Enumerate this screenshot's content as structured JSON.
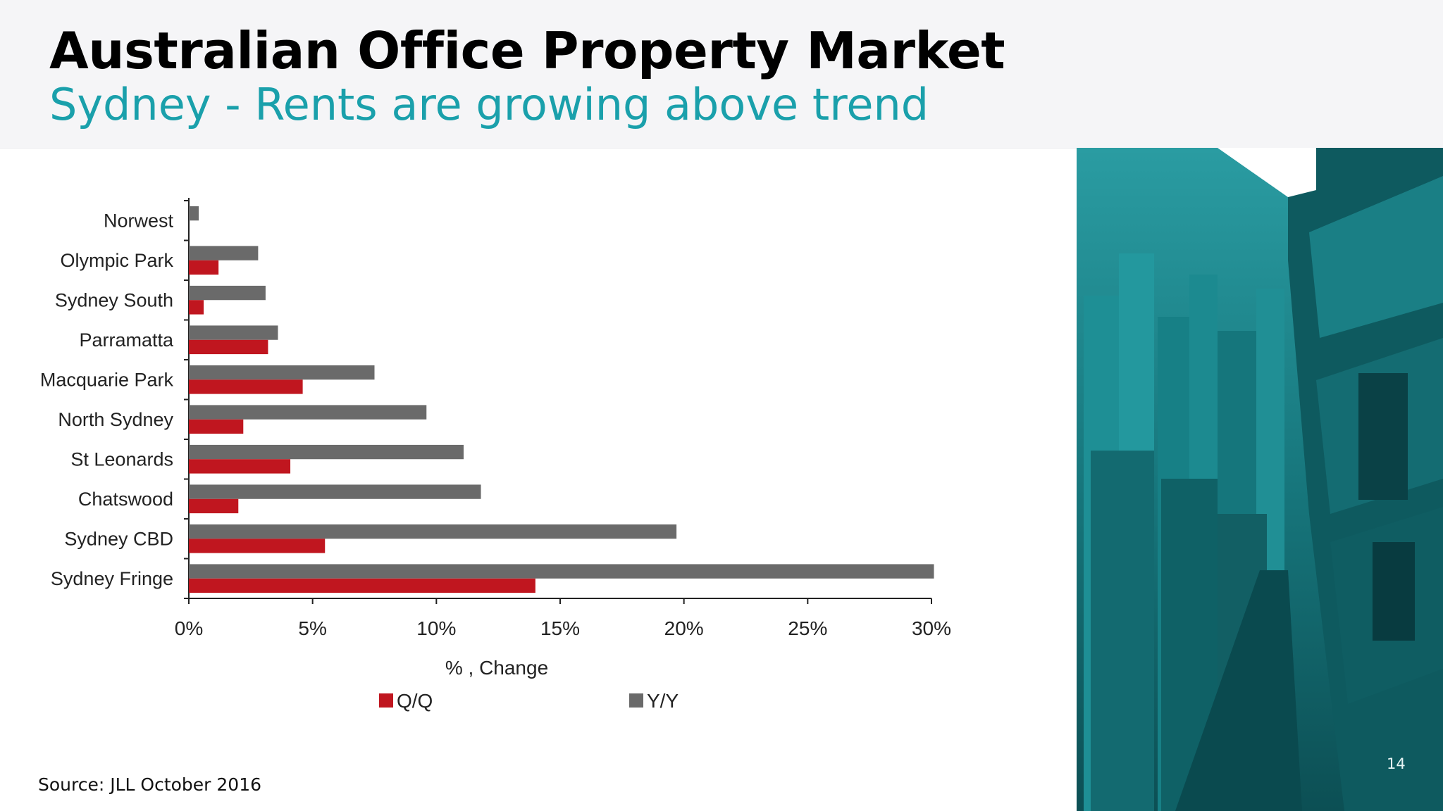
{
  "slide": {
    "title": "Australian Office Property Market",
    "subtitle": "Sydney - Rents are growing above trend",
    "source": "Source:  JLL October 2016",
    "page_number": "14",
    "photo": "city-skyline-photo"
  },
  "colors": {
    "accent": "#1aa0ab",
    "qq": "#c0161f",
    "yy": "#6a6a6a",
    "photo_tint": "#1b8f96"
  },
  "chart_data": {
    "type": "bar",
    "orientation": "horizontal",
    "categories": [
      "Norwest",
      "Olympic Park",
      "Sydney South",
      "Parramatta",
      "Macquarie Park",
      "North Sydney",
      "St Leonards",
      "Chatswood",
      "Sydney CBD",
      "Sydney Fringe"
    ],
    "series": [
      {
        "name": "Q/Q",
        "color": "#c0161f",
        "values": [
          0,
          1.2,
          0.6,
          3.2,
          4.6,
          2.2,
          4.1,
          2.0,
          5.5,
          14.0
        ]
      },
      {
        "name": "Y/Y",
        "color": "#6a6a6a",
        "values": [
          0.4,
          2.8,
          3.1,
          3.6,
          7.5,
          9.6,
          11.1,
          11.8,
          19.7,
          30.1
        ]
      }
    ],
    "xticks": [
      "0%",
      "5%",
      "10%",
      "15%",
      "20%",
      "25%",
      "30%"
    ],
    "xlabel": "% , Change",
    "xlim": [
      0,
      30
    ],
    "legend": "bottom",
    "grid": false
  }
}
